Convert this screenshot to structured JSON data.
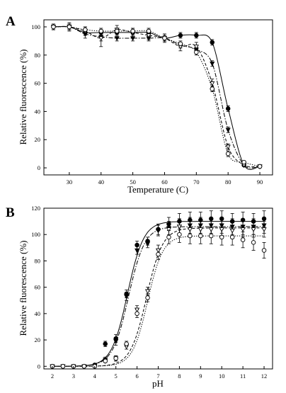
{
  "figure": {
    "panel_labels": [
      "A",
      "B"
    ]
  },
  "chart_data": [
    {
      "panel": "A",
      "type": "line",
      "xlabel": "Temperature (C)",
      "ylabel": "Relative fluorescence (%)",
      "xlim": [
        22,
        94
      ],
      "ylim": [
        -5,
        105
      ],
      "x_ticks": [
        30,
        40,
        50,
        60,
        70,
        80,
        90
      ],
      "y_ticks": [
        0,
        20,
        40,
        60,
        80,
        100
      ],
      "grid": false,
      "legend": "none",
      "marker_series": [
        {
          "marker": "filled-circle",
          "line": "solid",
          "x": [
            25,
            30,
            35,
            40,
            45,
            50,
            55,
            60,
            65,
            70,
            75,
            80,
            85,
            90
          ],
          "y": [
            100,
            100,
            96,
            96,
            96,
            96,
            96,
            92,
            94,
            94,
            89,
            42,
            2,
            1
          ],
          "err": [
            2,
            2,
            2,
            2,
            2,
            2,
            2,
            2,
            2,
            2,
            2,
            2,
            1,
            1
          ]
        },
        {
          "marker": "filled-triangle-down",
          "line": "dash-dot",
          "x": [
            25,
            30,
            35,
            40,
            45,
            50,
            55,
            60,
            65,
            70,
            75,
            80,
            85,
            90
          ],
          "y": [
            100,
            100,
            95,
            93,
            92,
            92,
            92,
            92,
            87,
            84,
            74,
            27,
            2,
            1
          ],
          "err": [
            2,
            2,
            3,
            3,
            2,
            2,
            2,
            2,
            2,
            2,
            2,
            2,
            1,
            1
          ]
        },
        {
          "marker": "open-triangle-down",
          "line": "dashed",
          "x": [
            25,
            30,
            35,
            40,
            45,
            50,
            55,
            60,
            65,
            70,
            75,
            80,
            85,
            90
          ],
          "y": [
            100,
            100,
            97,
            92,
            98,
            96,
            94,
            92,
            86,
            86,
            60,
            15,
            2,
            1
          ],
          "err": [
            2,
            3,
            3,
            6,
            3,
            3,
            3,
            3,
            3,
            3,
            3,
            2,
            1,
            1
          ]
        },
        {
          "marker": "open-circle",
          "line": "dotted",
          "x": [
            25,
            30,
            35,
            40,
            45,
            50,
            55,
            60,
            65,
            70,
            75,
            80,
            85,
            90
          ],
          "y": [
            100,
            100,
            98,
            97,
            97,
            97,
            97,
            92,
            88,
            82,
            56,
            10,
            4,
            1
          ],
          "err": [
            2,
            2,
            2,
            2,
            2,
            2,
            2,
            2,
            2,
            2,
            2,
            2,
            1,
            1
          ]
        }
      ]
    },
    {
      "panel": "B",
      "type": "line",
      "xlabel": "pH",
      "ylabel": "Relative fluorescence (%)",
      "xlim": [
        1.6,
        12.4
      ],
      "ylim": [
        -2,
        120
      ],
      "x_ticks": [
        2,
        3,
        4,
        5,
        6,
        7,
        8,
        9,
        10,
        11,
        12
      ],
      "y_ticks": [
        0,
        20,
        40,
        60,
        80,
        100,
        120
      ],
      "grid": false,
      "legend": "none",
      "marker_series": [
        {
          "marker": "filled-circle",
          "line": "solid",
          "x": [
            2,
            2.5,
            3,
            3.5,
            4,
            4.5,
            5,
            5.5,
            6,
            6.5,
            7,
            7.5,
            8,
            8.5,
            9,
            9.5,
            10,
            10.5,
            11,
            11.5,
            12
          ],
          "y": [
            0,
            0,
            0,
            0,
            1,
            17,
            21,
            55,
            92,
            95,
            104,
            108,
            110,
            111,
            111,
            112,
            112,
            110,
            111,
            110,
            112
          ],
          "err": [
            1,
            1,
            1,
            1,
            1,
            2,
            3,
            3,
            3,
            3,
            4,
            5,
            6,
            6,
            6,
            6,
            6,
            6,
            6,
            6,
            6
          ]
        },
        {
          "marker": "filled-triangle-down",
          "line": "dash-dot",
          "x": [
            2,
            2.5,
            3,
            3.5,
            4,
            4.5,
            5,
            5.5,
            6,
            6.5,
            7,
            7.5,
            8,
            8.5,
            9,
            9.5,
            10,
            10.5,
            11,
            11.5,
            12
          ],
          "y": [
            0,
            0,
            0,
            0,
            0,
            5,
            19,
            53,
            88,
            93,
            103,
            105,
            106,
            107,
            107,
            107,
            107,
            106,
            106,
            106,
            107
          ],
          "err": [
            1,
            1,
            1,
            1,
            1,
            2,
            3,
            3,
            3,
            3,
            4,
            5,
            6,
            6,
            6,
            6,
            6,
            6,
            6,
            6,
            6
          ]
        },
        {
          "marker": "open-triangle-down",
          "line": "dashed",
          "x": [
            2,
            2.5,
            3,
            3.5,
            4,
            4.5,
            5,
            5.5,
            6,
            6.5,
            7,
            7.5,
            8,
            8.5,
            9,
            9.5,
            10,
            10.5,
            11,
            11.5,
            12
          ],
          "y": [
            0,
            0,
            0,
            0,
            0,
            4,
            6,
            15,
            43,
            57,
            88,
            104,
            106,
            104,
            104,
            104,
            104,
            103,
            104,
            104,
            104
          ],
          "err": [
            1,
            1,
            1,
            1,
            1,
            1,
            2,
            2,
            3,
            3,
            4,
            5,
            6,
            6,
            6,
            6,
            6,
            6,
            6,
            6,
            6
          ]
        },
        {
          "marker": "open-circle",
          "line": "dotted",
          "x": [
            2,
            2.5,
            3,
            3.5,
            4,
            4.5,
            5,
            5.5,
            6,
            6.5,
            7,
            7.5,
            8,
            8.5,
            9,
            9.5,
            10,
            10.5,
            11,
            11.5,
            12
          ],
          "y": [
            0,
            0,
            0,
            0,
            0,
            4,
            6,
            17,
            40,
            52,
            85,
            98,
            100,
            99,
            99,
            99,
            98,
            98,
            96,
            94,
            88
          ],
          "err": [
            1,
            1,
            1,
            1,
            1,
            1,
            2,
            2,
            3,
            3,
            4,
            5,
            6,
            6,
            6,
            6,
            6,
            6,
            6,
            6,
            6
          ]
        }
      ],
      "fit_curves": [
        {
          "line": "solid",
          "bottom": 0,
          "top": 110,
          "mid": 5.55,
          "slope": 0.38
        },
        {
          "line": "dash-dot",
          "bottom": 0,
          "top": 106,
          "mid": 5.6,
          "slope": 0.38
        },
        {
          "line": "dashed",
          "bottom": 0,
          "top": 105,
          "mid": 6.45,
          "slope": 0.38
        },
        {
          "line": "dotted",
          "bottom": 0,
          "top": 99,
          "mid": 6.5,
          "slope": 0.36
        }
      ]
    }
  ]
}
